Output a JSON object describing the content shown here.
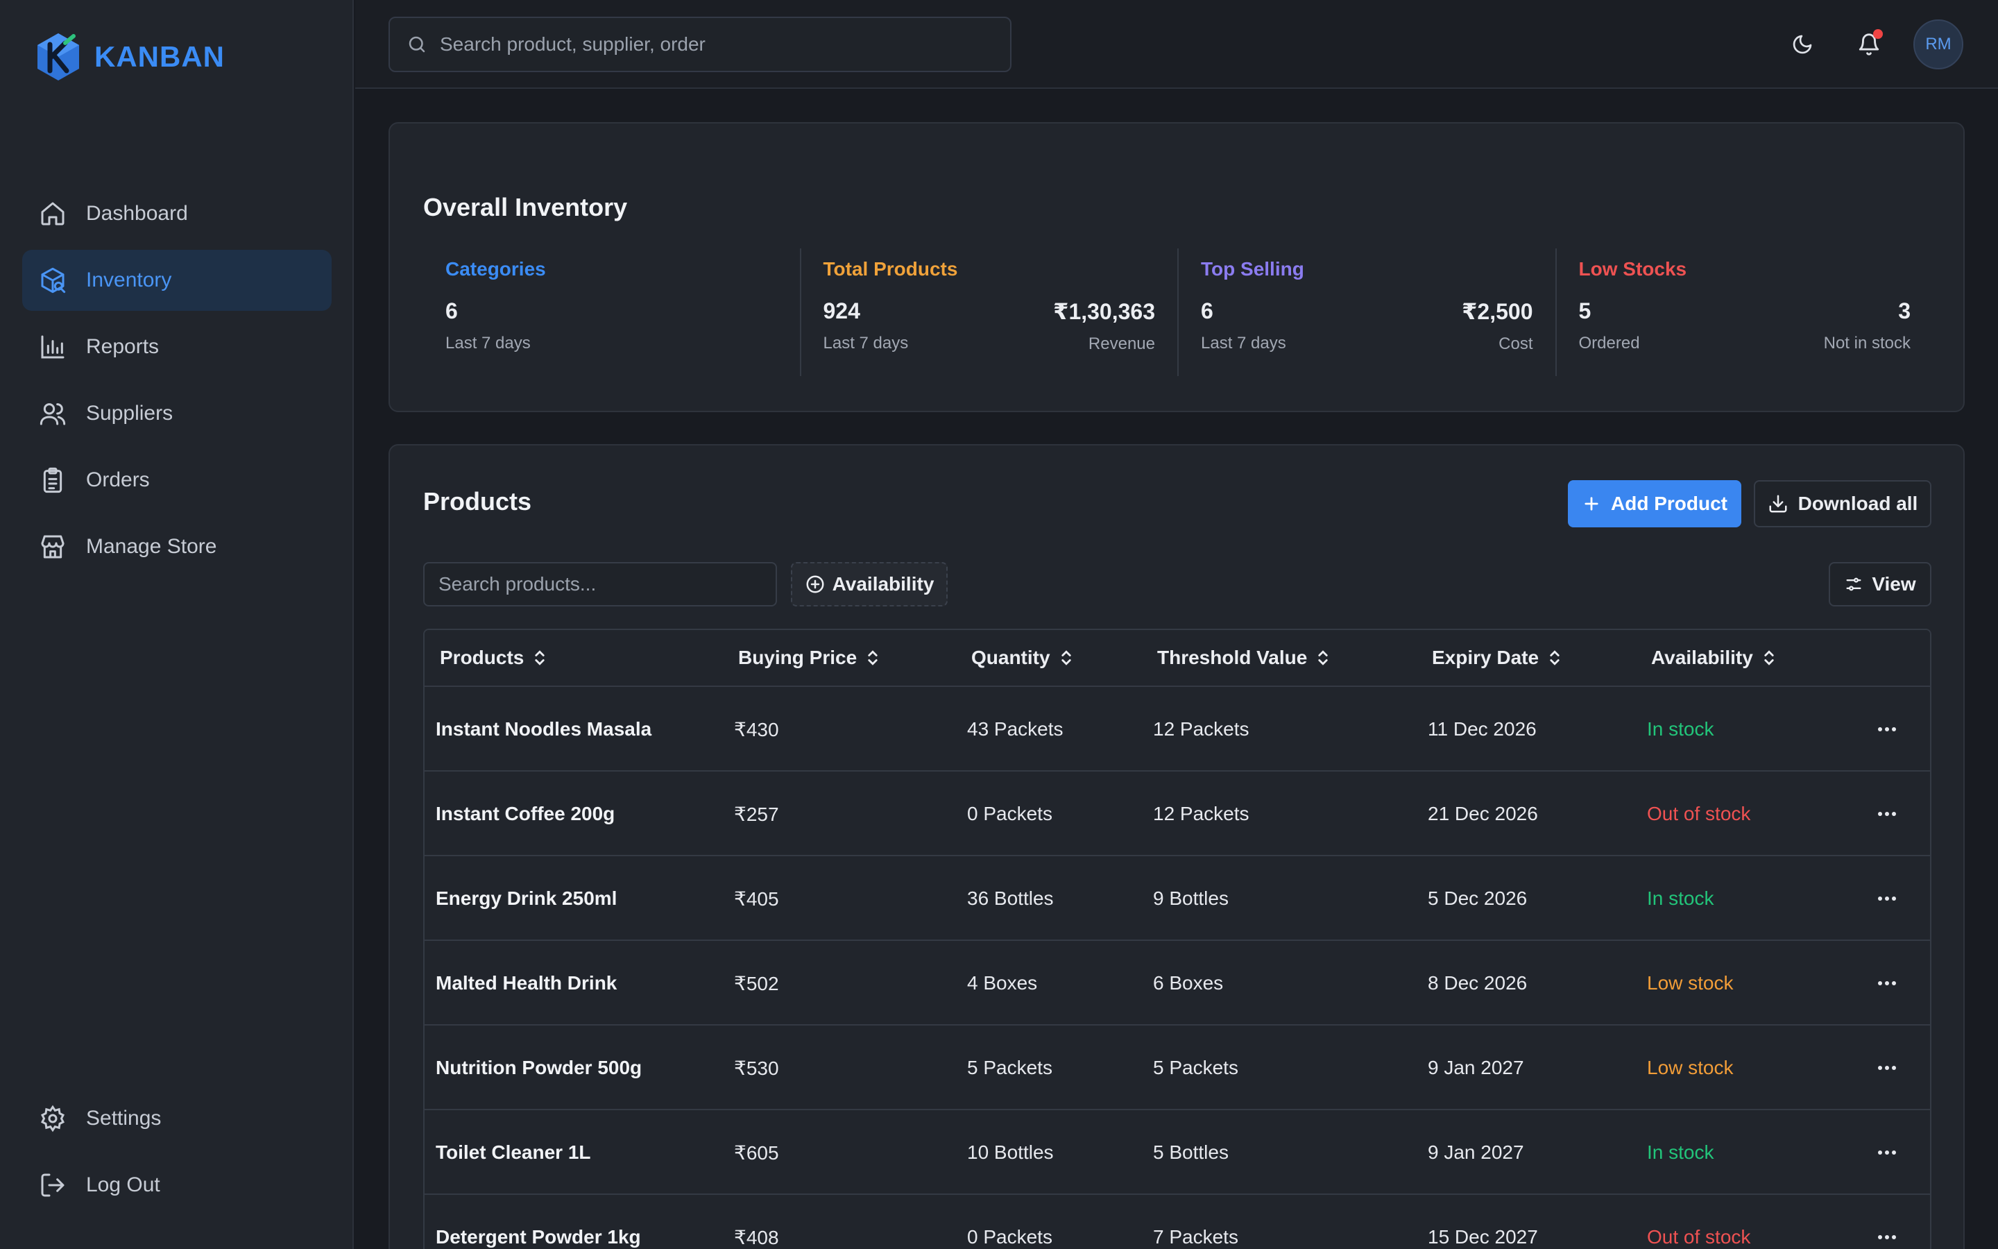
{
  "brand": {
    "name": "KANBAN"
  },
  "sidebar": {
    "items": [
      {
        "label": "Dashboard",
        "icon": "home-icon"
      },
      {
        "label": "Inventory",
        "icon": "inventory-icon",
        "active": true
      },
      {
        "label": "Reports",
        "icon": "chart-icon"
      },
      {
        "label": "Suppliers",
        "icon": "users-icon"
      },
      {
        "label": "Orders",
        "icon": "clipboard-icon"
      },
      {
        "label": "Manage Store",
        "icon": "store-icon"
      }
    ],
    "bottom": [
      {
        "label": "Settings",
        "icon": "gear-icon"
      },
      {
        "label": "Log Out",
        "icon": "logout-icon"
      }
    ]
  },
  "topbar": {
    "search_placeholder": "Search product, supplier, order",
    "avatar_initials": "RM"
  },
  "inventory": {
    "title": "Overall Inventory",
    "stats": [
      {
        "label": "Categories",
        "color": "#3b8cf5",
        "value": "6",
        "sub": "Last 7 days"
      },
      {
        "label": "Total Products",
        "color": "#f0a23a",
        "value": "924",
        "sub": "Last 7 days",
        "right_value": "₹1,30,363",
        "right_sub": "Revenue"
      },
      {
        "label": "Top Selling",
        "color": "#8b7cf0",
        "value": "6",
        "sub": "Last 7 days",
        "right_value": "₹2,500",
        "right_sub": "Cost"
      },
      {
        "label": "Low Stocks",
        "color": "#ee5252",
        "value": "5",
        "sub": "Ordered",
        "right_value": "3",
        "right_sub": "Not in stock"
      }
    ]
  },
  "products": {
    "title": "Products",
    "add_label": "Add Product",
    "download_label": "Download all",
    "search_placeholder": "Search products...",
    "availability_filter": "Availability",
    "view_label": "View",
    "columns": [
      "Products",
      "Buying Price",
      "Quantity",
      "Threshold Value",
      "Expiry Date",
      "Availability"
    ],
    "rows": [
      {
        "name": "Instant Noodles Masala",
        "price": "₹430",
        "qty": "43 Packets",
        "threshold": "12 Packets",
        "expiry": "11 Dec 2026",
        "status": "In stock"
      },
      {
        "name": "Instant Coffee 200g",
        "price": "₹257",
        "qty": "0 Packets",
        "threshold": "12 Packets",
        "expiry": "21 Dec 2026",
        "status": "Out of stock"
      },
      {
        "name": "Energy Drink 250ml",
        "price": "₹405",
        "qty": "36 Bottles",
        "threshold": "9 Bottles",
        "expiry": "5 Dec 2026",
        "status": "In stock"
      },
      {
        "name": "Malted Health Drink",
        "price": "₹502",
        "qty": "4 Boxes",
        "threshold": "6 Boxes",
        "expiry": "8 Dec 2026",
        "status": "Low stock"
      },
      {
        "name": "Nutrition Powder 500g",
        "price": "₹530",
        "qty": "5 Packets",
        "threshold": "5 Packets",
        "expiry": "9 Jan 2027",
        "status": "Low stock"
      },
      {
        "name": "Toilet Cleaner 1L",
        "price": "₹605",
        "qty": "10 Bottles",
        "threshold": "5 Bottles",
        "expiry": "9 Jan 2027",
        "status": "In stock"
      },
      {
        "name": "Detergent Powder 1kg",
        "price": "₹408",
        "qty": "0 Packets",
        "threshold": "7 Packets",
        "expiry": "15 Dec 2027",
        "status": "Out of stock"
      }
    ],
    "status_colors": {
      "In stock": "#22c57a",
      "Out of stock": "#ef5252",
      "Low stock": "#f29d38"
    }
  }
}
